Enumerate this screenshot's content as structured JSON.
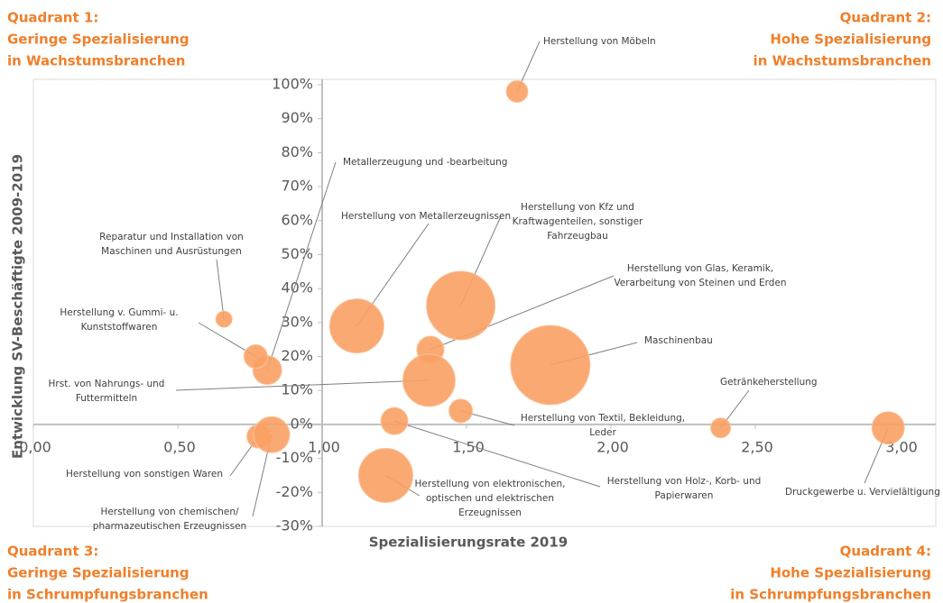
{
  "chart_data": {
    "type": "bubble",
    "xlabel": "Spezialisierungsrate 2019",
    "ylabel": "Entwicklung SV-Beschäftigte 2009-2019",
    "quadrants": [
      [
        "Quadrant 1:",
        "Geringe Spezialisierung",
        "in Wachstumsbranchen"
      ],
      [
        "Quadrant 2:",
        "Hohe Spezialisierung",
        "in Wachstumsbranchen"
      ],
      [
        "Quadrant 3:",
        "Geringe Spezialisierung",
        "in Schrumpfungsbranchen"
      ],
      [
        "Quadrant 4:",
        "Hohe Spezialisierung",
        "in Schrumpfungsbranchen"
      ]
    ],
    "xlim": [
      0,
      3
    ],
    "ylim": [
      -30,
      100
    ],
    "axis_cross": {
      "x": 1,
      "y": 0
    },
    "xticks": [
      {
        "value": 0,
        "label": "0,00"
      },
      {
        "value": 0.5,
        "label": "0,50"
      },
      {
        "value": 1,
        "label": "1,00"
      },
      {
        "value": 1.5,
        "label": "1,50"
      },
      {
        "value": 2,
        "label": "2,00"
      },
      {
        "value": 2.5,
        "label": "2,50"
      },
      {
        "value": 3,
        "label": "3,00"
      }
    ],
    "yticks": [
      {
        "value": 100,
        "label": "100%"
      },
      {
        "value": 90,
        "label": "90%"
      },
      {
        "value": 80,
        "label": "80%"
      },
      {
        "value": 70,
        "label": "70%"
      },
      {
        "value": 60,
        "label": "60%"
      },
      {
        "value": 50,
        "label": "50%"
      },
      {
        "value": 40,
        "label": "40%"
      },
      {
        "value": 30,
        "label": "30%"
      },
      {
        "value": 20,
        "label": "20%"
      },
      {
        "value": 10,
        "label": "10%"
      },
      {
        "value": 0,
        "label": "0%"
      },
      {
        "value": -10,
        "label": "-10%"
      },
      {
        "value": -20,
        "label": "-20%"
      },
      {
        "value": -30,
        "label": "-30%"
      }
    ],
    "color": "#f9a064",
    "points": [
      {
        "label": [
          "Herstellung von Möbeln"
        ],
        "x": 1.675,
        "y": 98,
        "size": 144
      },
      {
        "label": [
          "Metallerzeugung und -bearbeitung"
        ],
        "x": 0.81,
        "y": 16,
        "size": 256
      },
      {
        "label": [
          "Herstellung von Metallerzeugnissen"
        ],
        "x": 1.12,
        "y": 29,
        "size": 900
      },
      {
        "label": [
          "Herstellung von Kfz und",
          "Kraftwagenteilen, sonstiger",
          "Fahrzeugbau"
        ],
        "x": 1.48,
        "y": 35,
        "size": 1444
      },
      {
        "label": [
          "Herstellung von Glas, Keramik,",
          "Verarbeitung von Steinen und Erden"
        ],
        "x": 1.375,
        "y": 22,
        "size": 225
      },
      {
        "label": [
          "Maschinenbau"
        ],
        "x": 1.79,
        "y": 17.5,
        "size": 1936
      },
      {
        "label": [
          "Hrst. von Nahrungs- und",
          "Futtermitteln"
        ],
        "x": 1.37,
        "y": 13,
        "size": 841
      },
      {
        "label": [
          "Getränkeherstellung"
        ],
        "x": 2.38,
        "y": -1,
        "size": 121
      },
      {
        "label": [
          "Druckgewerbe u. Vervielältigung"
        ],
        "x": 2.96,
        "y": -1,
        "size": 324
      },
      {
        "label": [
          "Herstellung von Textil, Bekleidung,",
          "Leder"
        ],
        "x": 1.48,
        "y": 4,
        "size": 169
      },
      {
        "label": [
          "Herstellung von Holz-, Korb- und",
          "Papierwaren"
        ],
        "x": 1.25,
        "y": 1,
        "size": 225
      },
      {
        "label": [
          "Herstellung von elektronischen,",
          "optischen und elektrischen",
          "Erzeugnissen"
        ],
        "x": 1.22,
        "y": -15,
        "size": 900
      },
      {
        "label": [
          "Herstellung von sonstigen Waren"
        ],
        "x": 0.78,
        "y": -3.5,
        "size": 169
      },
      {
        "label": [
          "Herstellung von chemischen/",
          "pharmazeutischen Erzeugnissen"
        ],
        "x": 0.825,
        "y": -3,
        "size": 400
      },
      {
        "label": [
          "Reparatur und Installation von",
          "Maschinen und Ausrüstungen"
        ],
        "x": 0.66,
        "y": 31,
        "size": 81
      },
      {
        "label": [
          "Herstellung v. Gummi- u.",
          "Kunststoffwaren"
        ],
        "x": 0.77,
        "y": 20,
        "size": 169
      }
    ]
  }
}
